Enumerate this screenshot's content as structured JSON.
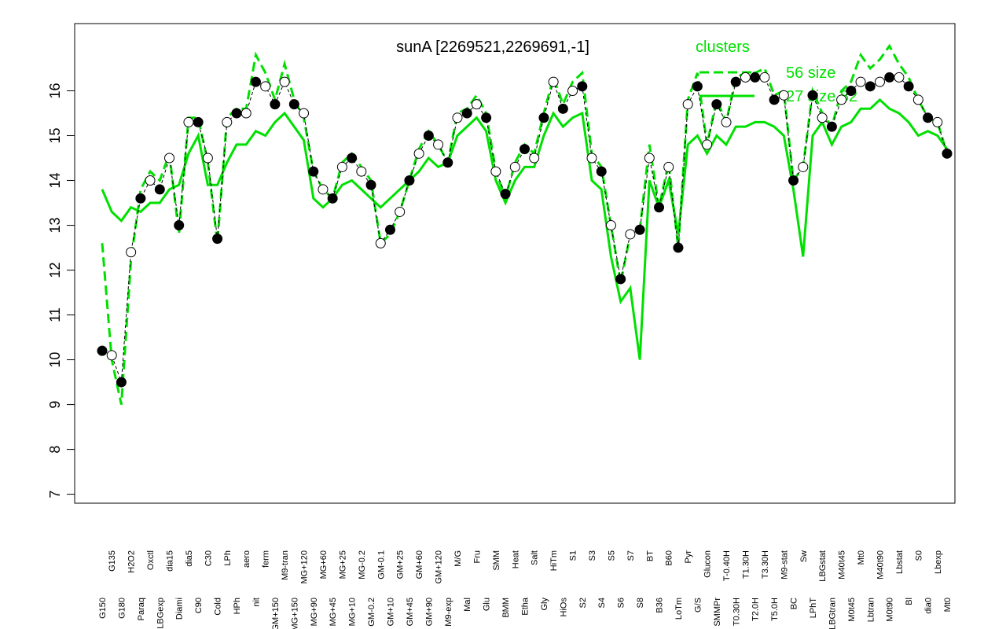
{
  "chart_data": {
    "type": "line",
    "title": "sunA [2269521,2269691,-1]",
    "legend_title": "clusters",
    "categories": [
      "G150",
      "G135",
      "G180",
      "H2O2",
      "Paraq",
      "Oxctl",
      "LBGexp",
      "dia15",
      "Diami",
      "dia5",
      "C90",
      "C30",
      "Cold",
      "LPh",
      "HPh",
      "aero",
      "nit",
      "ferm",
      "GM+150",
      "M9-tran",
      "MG+150",
      "MG+120",
      "MG+90",
      "MG+60",
      "MG+45",
      "MG+25",
      "MG+10",
      "MG-0.2",
      "GM-0.2",
      "GM-0.1",
      "GM+10",
      "GM+25",
      "GM+45",
      "GM+60",
      "GM+90",
      "GM+120",
      "M9-exp",
      "M/G",
      "Mal",
      "Fru",
      "Glu",
      "SMM",
      "BMM",
      "Heat",
      "Etha",
      "Salt",
      "Gly",
      "HiTm",
      "HiOs",
      "S1",
      "S2",
      "S3",
      "S4",
      "S5",
      "S6",
      "S7",
      "S8",
      "BT",
      "B36",
      "B60",
      "LoTm",
      "Pyr",
      "G/S",
      "Glucon",
      "SMMPr",
      "T-0.40H",
      "T0.30H",
      "T1.30H",
      "T2.0H",
      "T3.30H",
      "T5.0H",
      "M9-stat",
      "BC",
      "Sw",
      "LPhT",
      "LBGstat",
      "LBGtran",
      "M40t45",
      "M0t45",
      "Mt0",
      "Lbtran",
      "M40t90",
      "M0t90",
      "Lbstat",
      "Bl",
      "S0",
      "dia0",
      "Lbexp",
      "Mt0"
    ],
    "values": [
      10.2,
      10.1,
      9.5,
      12.4,
      13.6,
      14.0,
      13.8,
      14.5,
      13.0,
      15.3,
      15.3,
      14.5,
      12.7,
      15.3,
      15.5,
      15.5,
      16.2,
      16.1,
      15.7,
      16.2,
      15.7,
      15.5,
      14.2,
      13.8,
      13.6,
      14.3,
      14.5,
      14.2,
      13.9,
      12.6,
      12.9,
      13.3,
      14.0,
      14.6,
      15.0,
      14.8,
      14.4,
      15.4,
      15.5,
      15.7,
      15.4,
      14.2,
      13.7,
      14.3,
      14.7,
      14.5,
      15.4,
      16.2,
      15.6,
      16.0,
      16.1,
      14.5,
      14.2,
      13.0,
      11.8,
      12.8,
      12.9,
      14.5,
      13.4,
      14.3,
      12.5,
      15.7,
      16.1,
      14.8,
      15.7,
      15.3,
      16.2,
      16.3,
      16.3,
      16.3,
      15.8,
      15.9,
      14.0,
      14.3,
      15.9,
      15.4,
      15.2,
      15.8,
      16.0,
      16.2,
      16.1,
      16.2,
      16.3,
      16.3,
      16.1,
      15.8,
      15.4,
      15.3,
      14.6
    ],
    "color": "#000000",
    "series": [
      {
        "name": "56 size",
        "color": "#00e000",
        "dash": "12,6",
        "values": [
          12.6,
          10.0,
          9.0,
          12.2,
          13.8,
          14.2,
          14.0,
          14.6,
          12.8,
          15.4,
          15.4,
          14.4,
          12.6,
          15.4,
          15.6,
          15.6,
          16.8,
          16.4,
          15.8,
          16.6,
          15.8,
          15.4,
          14.2,
          13.8,
          13.6,
          14.4,
          14.6,
          14.3,
          14.0,
          12.6,
          12.8,
          13.3,
          14.0,
          14.7,
          15.1,
          14.8,
          14.4,
          15.5,
          15.6,
          15.9,
          15.5,
          14.2,
          13.6,
          14.4,
          14.8,
          14.6,
          15.5,
          16.3,
          15.7,
          16.2,
          16.4,
          14.6,
          14.3,
          13.0,
          11.7,
          12.8,
          12.9,
          14.8,
          13.4,
          14.4,
          12.5,
          15.8,
          16.4,
          14.8,
          15.8,
          15.3,
          16.3,
          16.4,
          16.4,
          16.5,
          15.9,
          16.0,
          14.0,
          14.3,
          16.0,
          15.5,
          15.2,
          16.0,
          16.2,
          16.8,
          16.5,
          16.7,
          17.0,
          16.6,
          16.3,
          15.8,
          15.4,
          15.3,
          14.6
        ]
      },
      {
        "name": "27 size 82",
        "color": "#00e000",
        "dash": "none",
        "values": [
          13.8,
          13.3,
          13.1,
          13.4,
          13.3,
          13.5,
          13.5,
          13.8,
          13.9,
          14.6,
          15.0,
          13.9,
          13.9,
          14.4,
          14.8,
          14.8,
          15.1,
          15.0,
          15.3,
          15.5,
          15.2,
          14.9,
          13.6,
          13.4,
          13.6,
          13.9,
          14.0,
          13.8,
          13.6,
          13.4,
          13.6,
          13.8,
          14.0,
          14.2,
          14.5,
          14.3,
          14.4,
          15.0,
          15.2,
          15.4,
          15.1,
          14.0,
          13.5,
          14.0,
          14.3,
          14.3,
          15.0,
          15.5,
          15.2,
          15.4,
          15.5,
          14.0,
          13.8,
          12.3,
          11.3,
          11.6,
          10.0,
          14.0,
          13.4,
          14.0,
          12.8,
          14.8,
          15.0,
          14.6,
          15.0,
          14.8,
          15.2,
          15.2,
          15.3,
          15.3,
          15.2,
          15.0,
          13.8,
          12.3,
          15.0,
          15.3,
          14.8,
          15.2,
          15.3,
          15.6,
          15.6,
          15.8,
          15.6,
          15.5,
          15.3,
          15.0,
          15.1,
          15.0,
          14.7
        ]
      }
    ],
    "ylim": [
      6.8,
      17.5
    ],
    "yticks": [
      7,
      8,
      9,
      10,
      11,
      12,
      13,
      14,
      15,
      16
    ],
    "grid": false
  }
}
